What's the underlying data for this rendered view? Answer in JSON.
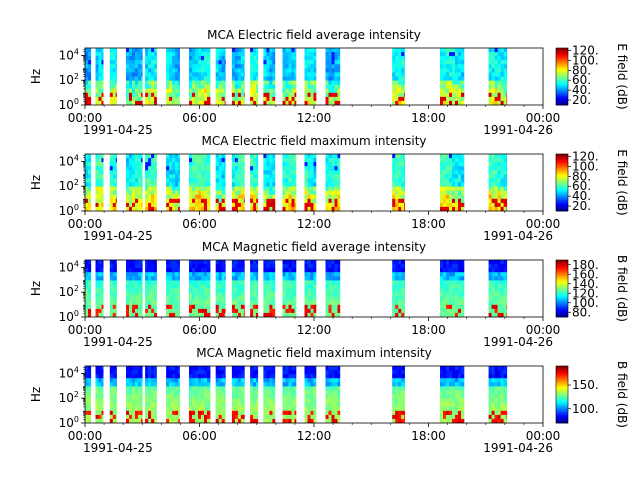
{
  "chart_data": [
    {
      "type": "heatmap",
      "title": "MCA  Electric field average intensity",
      "ylabel": "Hz",
      "yscale": "log",
      "ylim_exp": [
        0,
        4.6
      ],
      "ytick_base": "10",
      "ytick_exps": [
        "0",
        "2",
        "4"
      ],
      "xticks": [
        "00:00",
        "06:00",
        "12:00",
        "18:00",
        "00:00"
      ],
      "x_start_date": "1991-04-25",
      "x_end_date": "1991-04-26",
      "colorbar": {
        "label": "E field (dB)",
        "cmap": "jet",
        "min": 10,
        "max": 125,
        "ticks": [
          20,
          40,
          60,
          80,
          100,
          120
        ]
      },
      "base_level": 0.32,
      "style": "electric"
    },
    {
      "type": "heatmap",
      "title": "MCA  Electric field maximum intensity",
      "ylabel": "Hz",
      "yscale": "log",
      "ylim_exp": [
        0,
        4.6
      ],
      "ytick_base": "10",
      "ytick_exps": [
        "0",
        "2",
        "4"
      ],
      "xticks": [
        "00:00",
        "06:00",
        "12:00",
        "18:00",
        "00:00"
      ],
      "x_start_date": "1991-04-25",
      "x_end_date": "1991-04-26",
      "colorbar": {
        "label": "E field (dB)",
        "cmap": "jet",
        "min": 10,
        "max": 125,
        "ticks": [
          20,
          40,
          60,
          80,
          100,
          120
        ]
      },
      "base_level": 0.38,
      "style": "electric"
    },
    {
      "type": "heatmap",
      "title": "MCA  Magnetic field average intensity",
      "ylabel": "Hz",
      "yscale": "log",
      "ylim_exp": [
        0,
        4.6
      ],
      "ytick_base": "10",
      "ytick_exps": [
        "0",
        "2",
        "4"
      ],
      "xticks": [
        "00:00",
        "06:00",
        "12:00",
        "18:00",
        "00:00"
      ],
      "x_start_date": "1991-04-25",
      "x_end_date": "1991-04-26",
      "colorbar": {
        "label": "B field (dB)",
        "cmap": "jet",
        "min": 70,
        "max": 190,
        "ticks": [
          80,
          100,
          120,
          140,
          160,
          180
        ]
      },
      "base_level": 0.4,
      "style": "magnetic"
    },
    {
      "type": "heatmap",
      "title": "MCA  Magnetic field maximum intensity",
      "ylabel": "Hz",
      "yscale": "log",
      "ylim_exp": [
        0,
        4.6
      ],
      "ytick_base": "10",
      "ytick_exps": [
        "0",
        "2",
        "4"
      ],
      "xticks": [
        "00:00",
        "06:00",
        "12:00",
        "18:00",
        "00:00"
      ],
      "x_start_date": "1991-04-25",
      "x_end_date": "1991-04-26",
      "colorbar": {
        "label": "B field (dB)",
        "cmap": "jet",
        "min": 70,
        "max": 190,
        "ticks": [
          100,
          150
        ]
      },
      "base_level": 0.45,
      "style": "magnetic"
    }
  ],
  "data_intervals_hours": [
    [
      0.0,
      0.3
    ],
    [
      0.55,
      0.95
    ],
    [
      1.3,
      1.65
    ],
    [
      2.15,
      3.0
    ],
    [
      3.15,
      3.75
    ],
    [
      4.25,
      4.95
    ],
    [
      5.45,
      6.55
    ],
    [
      6.85,
      7.35
    ],
    [
      7.7,
      8.35
    ],
    [
      8.65,
      9.05
    ],
    [
      9.35,
      9.95
    ],
    [
      10.35,
      11.05
    ],
    [
      11.5,
      12.1
    ],
    [
      12.6,
      13.35
    ],
    [
      16.1,
      16.75
    ],
    [
      18.6,
      19.85
    ],
    [
      21.15,
      22.1
    ]
  ]
}
